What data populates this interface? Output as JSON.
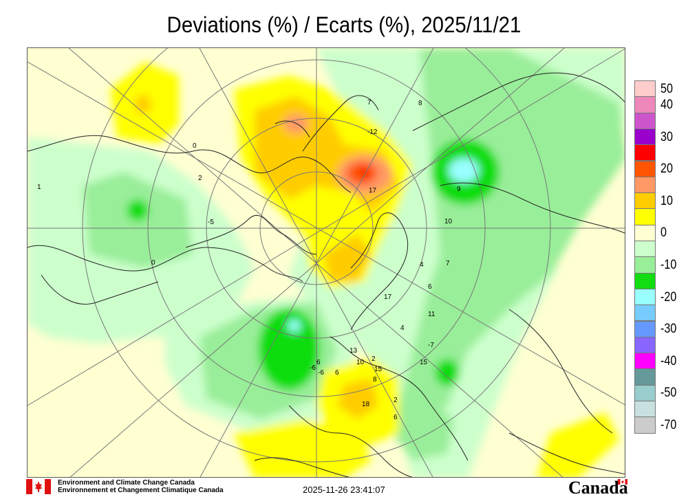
{
  "title": "Deviations (%) / Ecarts (%), 2025/11/21",
  "legend": {
    "entries": [
      {
        "label": "50",
        "color": "#ffcccc"
      },
      {
        "label": "40",
        "color": "#ee88bb"
      },
      {
        "label": "",
        "color": "#cc55cc"
      },
      {
        "label": "30",
        "color": "#9900cc"
      },
      {
        "label": "",
        "color": "#ff0000"
      },
      {
        "label": "20",
        "color": "#ff5500"
      },
      {
        "label": "",
        "color": "#ff9966"
      },
      {
        "label": "10",
        "color": "#ffcc00"
      },
      {
        "label": "",
        "color": "#ffff00"
      },
      {
        "label": "0",
        "color": "#ffffd2"
      },
      {
        "label": "",
        "color": "#ccffcc"
      },
      {
        "label": "-10",
        "color": "#99ee99"
      },
      {
        "label": "",
        "color": "#11dd11"
      },
      {
        "label": "-20",
        "color": "#99ffff"
      },
      {
        "label": "",
        "color": "#77ccff"
      },
      {
        "label": "-30",
        "color": "#6699ff"
      },
      {
        "label": "",
        "color": "#8866ff"
      },
      {
        "label": "-40",
        "color": "#ff00ff"
      },
      {
        "label": "",
        "color": "#669999"
      },
      {
        "label": "-50",
        "color": "#99cccc"
      },
      {
        "label": "",
        "color": "#c8e0e0"
      },
      {
        "label": "-70",
        "color": "#cccccc"
      }
    ],
    "labels_top_to_bottom": [
      "50",
      "40",
      "30",
      "20",
      "10",
      "0",
      "-10",
      "-20",
      "-30",
      "-40",
      "-50",
      "-70"
    ]
  },
  "stations": [
    "1",
    "2",
    "0",
    "0",
    "7",
    "8",
    "-12",
    "17",
    "10",
    "4",
    "7",
    "6",
    "4",
    "11",
    "17",
    "9",
    "-7",
    "13",
    "10",
    "2",
    "15",
    "6",
    "8",
    "6",
    "15",
    "-6",
    "18",
    "2",
    "6",
    "-5",
    "-6"
  ],
  "footer": {
    "org_en": "Environment and Climate Change Canada",
    "org_fr": "Environnement et Changement Climatique Canada",
    "timestamp": "2025-11-26 23:41:07",
    "wordmark": "Canada"
  }
}
